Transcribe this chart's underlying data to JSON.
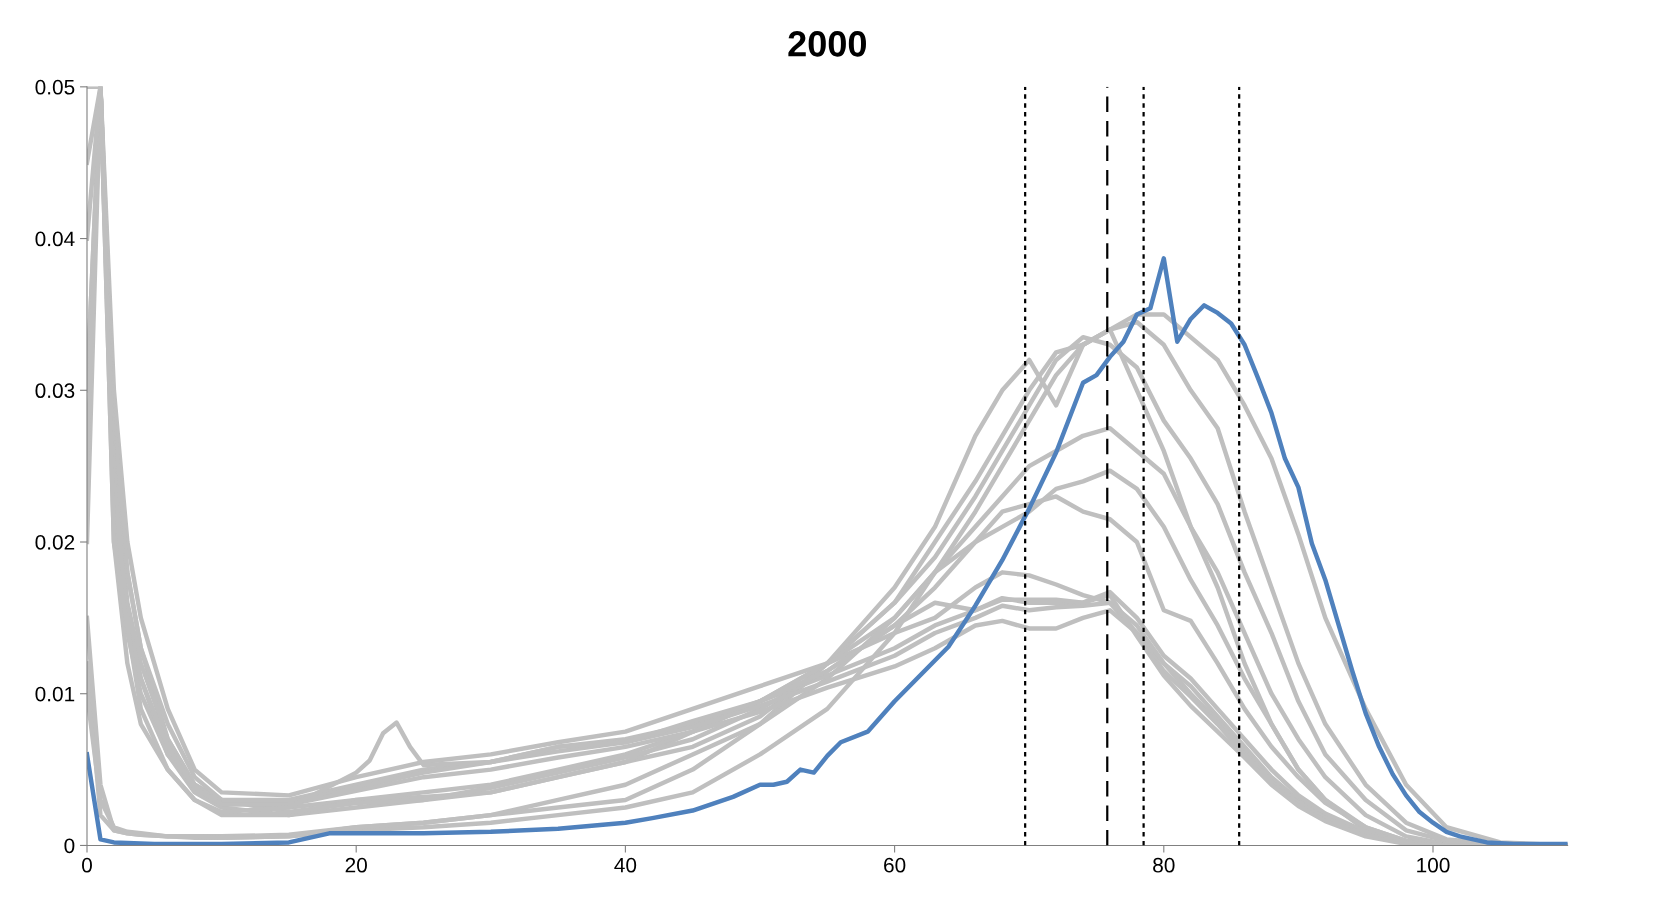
{
  "chart_data": {
    "type": "line",
    "title": "2000",
    "xlim": [
      0,
      110
    ],
    "xticks": [
      0,
      20,
      40,
      60,
      80,
      100
    ],
    "ylim": [
      0,
      0.05
    ],
    "yticks": [
      0,
      0.01,
      0.02,
      0.03,
      0.04,
      0.05
    ],
    "grid": false,
    "legend": false,
    "marker": "none",
    "line_style": "solid",
    "x": [
      0,
      1,
      2,
      3,
      4,
      6,
      8,
      10,
      15,
      20,
      25,
      30,
      35,
      40,
      45,
      50,
      55,
      60,
      63,
      66,
      68,
      70,
      72,
      74,
      76,
      78,
      80,
      82,
      84,
      86,
      88,
      90,
      92,
      95,
      98,
      101,
      105,
      110
    ],
    "series": [
      {
        "color": "#bfbfbf",
        "values": [
          0.02,
          0.05,
          0.026,
          0.018,
          0.013,
          0.007,
          0.004,
          0.003,
          0.0025,
          0.003,
          0.0032,
          0.0035,
          0.0045,
          0.0055,
          0.0065,
          0.0085,
          0.012,
          0.016,
          0.02,
          0.024,
          0.027,
          0.03,
          0.0325,
          0.033,
          0.034,
          0.035,
          0.035,
          0.0335,
          0.032,
          0.029,
          0.0255,
          0.0205,
          0.015,
          0.009,
          0.004,
          0.0012,
          0.0002,
          0
        ]
      },
      {
        "color": "#bfbfbf",
        "values": [
          0.012,
          0.002,
          0.001,
          0.0008,
          0.0007,
          0.0006,
          0.0005,
          0.0005,
          0.0006,
          0.001,
          0.0012,
          0.0015,
          0.002,
          0.0025,
          0.0035,
          0.006,
          0.009,
          0.014,
          0.018,
          0.022,
          0.025,
          0.028,
          0.031,
          0.033,
          0.034,
          0.0345,
          0.033,
          0.03,
          0.0275,
          0.022,
          0.017,
          0.012,
          0.008,
          0.004,
          0.0015,
          0.0004,
          0.0001,
          0
        ]
      },
      {
        "color": "#bfbfbf",
        "values": [
          0.03,
          0.05,
          0.02,
          0.012,
          0.008,
          0.005,
          0.003,
          0.002,
          0.002,
          0.0025,
          0.003,
          0.0035,
          0.0045,
          0.0055,
          0.0075,
          0.0095,
          0.012,
          0.016,
          0.019,
          0.023,
          0.026,
          0.029,
          0.032,
          0.0335,
          0.033,
          0.0315,
          0.028,
          0.0255,
          0.0225,
          0.018,
          0.014,
          0.0095,
          0.006,
          0.003,
          0.001,
          0.0003,
          0,
          0
        ]
      },
      {
        "color": "#bfbfbf",
        "values": [
          0.015,
          0.004,
          0.001,
          0.0008,
          0.0007,
          0.0006,
          0.0006,
          0.0006,
          0.0007,
          0.0012,
          0.0015,
          0.002,
          0.0025,
          0.003,
          0.005,
          0.008,
          0.012,
          0.017,
          0.021,
          0.027,
          0.03,
          0.032,
          0.029,
          0.033,
          0.034,
          0.03,
          0.026,
          0.021,
          0.017,
          0.012,
          0.008,
          0.005,
          0.003,
          0.001,
          0.0003,
          0.0001,
          0,
          0
        ]
      },
      {
        "color": "#bfbfbf",
        "values": [
          0.03,
          0.05,
          0.022,
          0.014,
          0.01,
          0.006,
          0.0035,
          0.0025,
          0.002,
          0.003,
          0.0035,
          0.004,
          0.005,
          0.006,
          0.0075,
          0.0095,
          0.012,
          0.015,
          0.018,
          0.021,
          0.023,
          0.025,
          0.026,
          0.027,
          0.0275,
          0.026,
          0.0245,
          0.021,
          0.018,
          0.014,
          0.01,
          0.007,
          0.0045,
          0.002,
          0.0006,
          0.0001,
          0,
          0
        ]
      },
      {
        "color": "#bfbfbf",
        "values": [
          0.025,
          0.05,
          0.024,
          0.015,
          0.011,
          0.006,
          0.004,
          0.003,
          0.0022,
          0.0028,
          0.003,
          0.0038,
          0.0048,
          0.0058,
          0.007,
          0.009,
          0.0115,
          0.0145,
          0.017,
          0.02,
          0.021,
          0.022,
          0.0235,
          0.024,
          0.0247,
          0.0235,
          0.021,
          0.0175,
          0.0145,
          0.011,
          0.008,
          0.005,
          0.003,
          0.0012,
          0.0003,
          0.0001,
          0,
          0
        ]
      },
      {
        "color": "#bfbfbf",
        "values": [
          0.01,
          0.003,
          0.0012,
          0.0009,
          0.0008,
          0.0006,
          0.0006,
          0.0005,
          0.0006,
          0.0012,
          0.0015,
          0.002,
          0.003,
          0.004,
          0.006,
          0.008,
          0.011,
          0.015,
          0.018,
          0.02,
          0.022,
          0.0225,
          0.023,
          0.022,
          0.0215,
          0.02,
          0.0155,
          0.0148,
          0.012,
          0.009,
          0.0065,
          0.0045,
          0.0028,
          0.0012,
          0.0003,
          0.0001,
          0,
          0
        ]
      },
      {
        "color": "#bfbfbf",
        "values": [
          0.05,
          0.05,
          0.03,
          0.02,
          0.015,
          0.009,
          0.005,
          0.0035,
          0.0033,
          0.0045,
          0.0055,
          0.006,
          0.0068,
          0.0075,
          0.009,
          0.0105,
          0.012,
          0.014,
          0.015,
          0.017,
          0.018,
          0.0178,
          0.0172,
          0.0165,
          0.016,
          0.014,
          0.012,
          0.0105,
          0.0085,
          0.0065,
          0.0045,
          0.003,
          0.002,
          0.0008,
          0.0002,
          0,
          0,
          0
        ]
      },
      {
        "color": "#bfbfbf",
        "values": [
          0.05,
          0.05,
          0.028,
          0.018,
          0.013,
          0.008,
          0.0045,
          0.003,
          0.003,
          0.004,
          0.005,
          0.0055,
          0.0065,
          0.007,
          0.008,
          0.0095,
          0.0112,
          0.013,
          0.0145,
          0.0155,
          0.0163,
          0.016,
          0.016,
          0.016,
          0.0167,
          0.015,
          0.0125,
          0.011,
          0.009,
          0.007,
          0.005,
          0.0033,
          0.0021,
          0.0009,
          0.0002,
          0,
          0,
          0
        ]
      },
      {
        "color": "#bfbfbf",
        "values": [
          0.045,
          0.05,
          0.025,
          0.016,
          0.012,
          0.007,
          0.004,
          0.0028,
          0.0028,
          0.0038,
          0.0048,
          0.0055,
          0.0062,
          0.0068,
          0.0078,
          0.0092,
          0.0108,
          0.0125,
          0.014,
          0.015,
          0.0158,
          0.0155,
          0.0157,
          0.0158,
          0.016,
          0.0145,
          0.012,
          0.01,
          0.0082,
          0.0062,
          0.0042,
          0.0028,
          0.0018,
          0.0007,
          0.0002,
          0,
          0,
          0
        ]
      },
      {
        "color": "#bfbfbf",
        "values": [
          0.04,
          0.05,
          0.024,
          0.015,
          0.011,
          0.0065,
          0.0038,
          0.0027,
          0.0027,
          0.0036,
          0.0045,
          0.005,
          0.0058,
          0.0065,
          0.0075,
          0.0088,
          0.0104,
          0.0118,
          0.013,
          0.0145,
          0.0148,
          0.0143,
          0.0143,
          0.015,
          0.0155,
          0.014,
          0.0115,
          0.0098,
          0.008,
          0.006,
          0.0042,
          0.0028,
          0.0018,
          0.0007,
          0.0002,
          0,
          0,
          0
        ]
      },
      {
        "color": "#bfbfbf",
        "x": [
          0,
          1,
          2,
          4,
          6,
          8,
          10,
          15,
          20,
          21,
          22,
          23,
          24,
          25,
          30,
          35,
          40,
          45,
          50,
          55,
          60,
          63,
          66,
          68,
          70,
          72,
          74,
          76,
          78,
          80,
          82,
          84,
          86,
          88,
          90,
          92,
          95,
          98,
          101,
          105,
          110
        ],
        "values": [
          0.05,
          0.05,
          0.02,
          0.009,
          0.005,
          0.003,
          0.0022,
          0.0025,
          0.0048,
          0.0056,
          0.0074,
          0.0081,
          0.0065,
          0.0053,
          0.0055,
          0.0065,
          0.0068,
          0.0082,
          0.0095,
          0.0115,
          0.0145,
          0.016,
          0.0155,
          0.0162,
          0.0162,
          0.0162,
          0.016,
          0.0165,
          0.0138,
          0.0112,
          0.0092,
          0.0075,
          0.0058,
          0.004,
          0.0026,
          0.0016,
          0.0006,
          0.0001,
          0,
          0,
          0
        ]
      },
      {
        "color": "#4f81bd",
        "x": [
          0,
          1,
          2,
          5,
          10,
          15,
          18,
          20,
          25,
          30,
          35,
          40,
          42,
          45,
          48,
          50,
          51,
          52,
          53,
          54,
          55,
          56,
          58,
          60,
          62,
          64,
          66,
          68,
          70,
          72,
          74,
          75,
          76,
          77,
          78,
          79,
          80,
          81,
          82,
          83,
          84,
          85,
          86,
          87,
          88,
          89,
          90,
          91,
          92,
          93,
          94,
          95,
          96,
          97,
          98,
          99,
          100,
          101,
          102,
          104,
          106,
          110
        ],
        "values": [
          0.006,
          0.0004,
          0.0002,
          0.0001,
          0.0001,
          0.0002,
          0.0008,
          0.0008,
          0.0008,
          0.0009,
          0.0011,
          0.0015,
          0.0018,
          0.0023,
          0.0032,
          0.004,
          0.004,
          0.0042,
          0.005,
          0.0048,
          0.0059,
          0.0068,
          0.0075,
          0.0095,
          0.0113,
          0.0131,
          0.0158,
          0.0188,
          0.0222,
          0.0259,
          0.0305,
          0.031,
          0.0322,
          0.0332,
          0.035,
          0.0354,
          0.0387,
          0.0332,
          0.0347,
          0.0356,
          0.0351,
          0.0344,
          0.033,
          0.0308,
          0.0285,
          0.0255,
          0.0236,
          0.0199,
          0.0175,
          0.0145,
          0.0115,
          0.0087,
          0.0065,
          0.0047,
          0.0033,
          0.0022,
          0.0015,
          0.0009,
          0.0006,
          0.0002,
          0.0001,
          0.0001
        ]
      }
    ],
    "ref_lines": [
      {
        "axis": "x",
        "value": 69.7,
        "color": "#000000",
        "line_style": "dotted"
      },
      {
        "axis": "x",
        "value": 75.8,
        "color": "#000000",
        "line_style": "dashed"
      },
      {
        "axis": "x",
        "value": 78.5,
        "color": "#000000",
        "line_style": "dotted"
      },
      {
        "axis": "x",
        "value": 85.6,
        "color": "#000000",
        "line_style": "dotted"
      }
    ]
  }
}
